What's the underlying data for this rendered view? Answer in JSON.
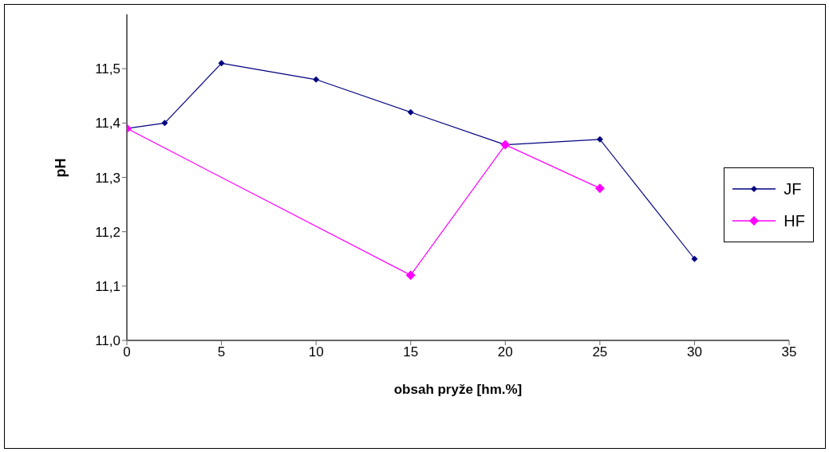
{
  "chart_data": {
    "type": "line",
    "xlabel": "obsah pryže [hm.%]",
    "ylabel": "pH",
    "xlim": [
      0,
      35
    ],
    "xticks": [
      0,
      5,
      10,
      15,
      20,
      25,
      30,
      35
    ],
    "ylim": [
      11,
      11.6
    ],
    "yticks": [
      {
        "value": 11,
        "label": "11,0"
      },
      {
        "value": 11.1,
        "label": "11,1"
      },
      {
        "value": 11.2,
        "label": "11,2"
      },
      {
        "value": 11.3,
        "label": "11,3"
      },
      {
        "value": 11.4,
        "label": "11,4"
      },
      {
        "value": 11.5,
        "label": "11,5"
      }
    ],
    "grid": false,
    "legend": "right",
    "marker": "diamond",
    "line_style": "solid",
    "series": [
      {
        "name": "JF",
        "color": "#000080",
        "x": [
          0,
          2,
          5,
          10,
          15,
          20,
          25,
          30
        ],
        "values": [
          11.39,
          11.4,
          11.51,
          11.48,
          11.42,
          11.36,
          11.37,
          11.15
        ]
      },
      {
        "name": "HF",
        "color": "#ff00ff",
        "x": [
          0,
          15,
          20,
          25
        ],
        "values": [
          11.39,
          11.12,
          11.36,
          11.28
        ]
      }
    ]
  }
}
